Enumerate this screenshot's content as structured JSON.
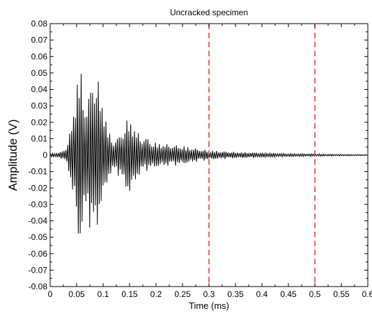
{
  "chart_data": {
    "type": "line",
    "title": "Uncracked specimen",
    "xlabel": "Time (ms)",
    "ylabel": "Amplitude (V)",
    "xlim": [
      0,
      0.6
    ],
    "ylim": [
      -0.08,
      0.08
    ],
    "x_ticks": [
      "0",
      "0.05",
      "0.1",
      "0.15",
      "0.2",
      "0.25",
      "0.3",
      "0.35",
      "0.4",
      "0.45",
      "0.5",
      "0.55",
      "0.6"
    ],
    "y_ticks": [
      "0.08",
      "0.07",
      "0.06",
      "0.05",
      "0.04",
      "0.03",
      "0.02",
      "0.01",
      "0",
      "-0.01",
      "-0.02",
      "-0.03",
      "-0.04",
      "-0.05",
      "-0.06",
      "-0.07",
      "-0.08"
    ],
    "grid": false,
    "series": [
      {
        "color": "#000000",
        "envelope": {
          "x": [
            0,
            0.02,
            0.03,
            0.035,
            0.04,
            0.045,
            0.05,
            0.055,
            0.06,
            0.065,
            0.07,
            0.075,
            0.08,
            0.085,
            0.09,
            0.095,
            0.1,
            0.11,
            0.12,
            0.13,
            0.14,
            0.15,
            0.16,
            0.17,
            0.18,
            0.19,
            0.2,
            0.22,
            0.25,
            0.28,
            0.3,
            0.35,
            0.4,
            0.45,
            0.5,
            0.55,
            0.6
          ],
          "max": [
            0.001,
            0.002,
            0.005,
            0.01,
            0.02,
            0.035,
            0.045,
            0.059,
            0.05,
            0.038,
            0.032,
            0.042,
            0.055,
            0.052,
            0.048,
            0.04,
            0.035,
            0.015,
            0.01,
            0.012,
            0.02,
            0.024,
            0.018,
            0.012,
            0.012,
            0.009,
            0.008,
            0.007,
            0.006,
            0.004,
            0.003,
            0.002,
            0.0015,
            0.001,
            0.0008,
            0.0005,
            0.0003
          ],
          "min": [
            -0.001,
            -0.002,
            -0.005,
            -0.01,
            -0.022,
            -0.03,
            -0.045,
            -0.063,
            -0.05,
            -0.04,
            -0.035,
            -0.045,
            -0.056,
            -0.052,
            -0.045,
            -0.035,
            -0.03,
            -0.015,
            -0.01,
            -0.013,
            -0.02,
            -0.026,
            -0.018,
            -0.012,
            -0.01,
            -0.009,
            -0.008,
            -0.007,
            -0.006,
            -0.004,
            -0.003,
            -0.002,
            -0.0015,
            -0.001,
            -0.0008,
            -0.0005,
            -0.0003
          ]
        }
      }
    ],
    "vertical_lines": [
      {
        "x": 0.3,
        "color": "#e8303a",
        "style": "dashed"
      },
      {
        "x": 0.5,
        "color": "#e8303a",
        "style": "dashed"
      }
    ]
  }
}
